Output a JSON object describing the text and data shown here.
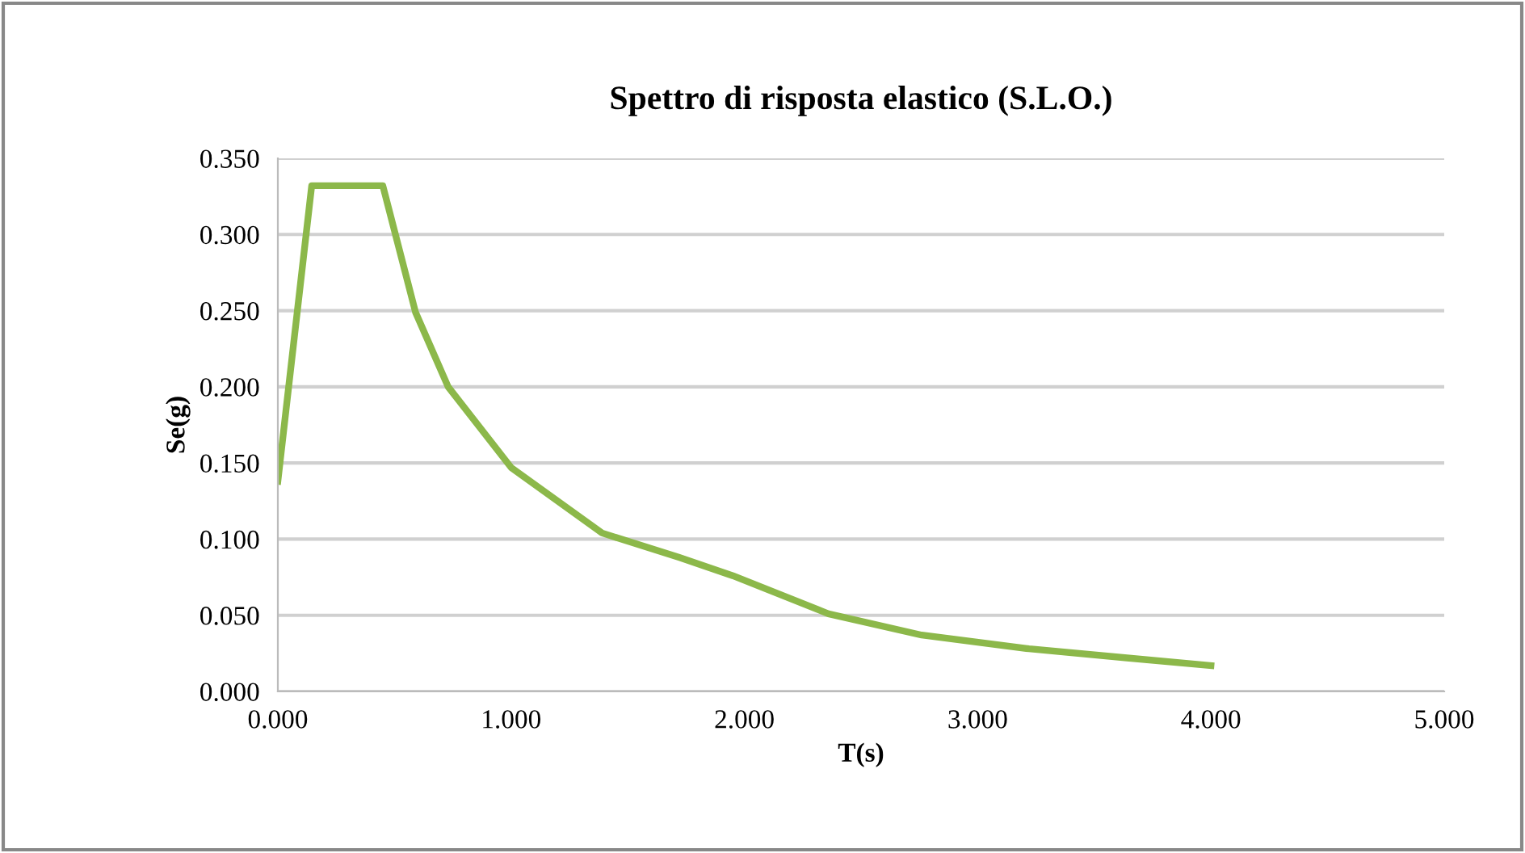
{
  "chart_data": {
    "type": "line",
    "title": "Spettro di risposta elastico (S.L.O.)",
    "xlabel": "T(s)",
    "ylabel": "Se(g)",
    "x": [
      0,
      0.145,
      0.45,
      0.59,
      0.73,
      1.0,
      1.39,
      1.72,
      1.95,
      2.36,
      2.76,
      3.22,
      3.64,
      4.0
    ],
    "series": [
      {
        "color": "#8cb84a",
        "values": [
          0.138,
          0.332,
          0.332,
          0.249,
          0.2,
          0.147,
          0.104,
          0.088,
          0.076,
          0.051,
          0.037,
          0.028,
          0.022,
          0.017
        ]
      }
    ],
    "xlim": [
      0,
      5
    ],
    "xticks": [
      {
        "value": 0,
        "label": "0.000"
      },
      {
        "value": 1,
        "label": "1.000"
      },
      {
        "value": 2,
        "label": "2.000"
      },
      {
        "value": 3,
        "label": "3.000"
      },
      {
        "value": 4,
        "label": "4.000"
      },
      {
        "value": 5,
        "label": "5.000"
      }
    ],
    "ylim": [
      0,
      0.35
    ],
    "yticks": [
      {
        "value": 0,
        "label": "0.000"
      },
      {
        "value": 0.05,
        "label": "0.050"
      },
      {
        "value": 0.1,
        "label": "0.100"
      },
      {
        "value": 0.15,
        "label": "0.150"
      },
      {
        "value": 0.2,
        "label": "0.200"
      },
      {
        "value": 0.25,
        "label": "0.250"
      },
      {
        "value": 0.3,
        "label": "0.300"
      },
      {
        "value": 0.35,
        "label": "0.350"
      }
    ],
    "grid": "y",
    "legend": false,
    "marker": "none",
    "line_style": "solid"
  }
}
